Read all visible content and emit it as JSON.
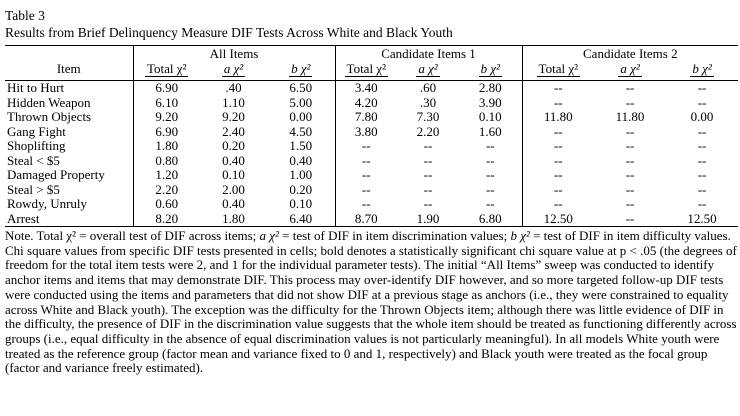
{
  "table": {
    "label": "Table 3",
    "title": "Results from Brief Delinquency Measure DIF Tests Across White and Black Youth",
    "item_header": "Item",
    "groups": [
      {
        "label": "All Items",
        "columns": [
          {
            "label": "Total χ²",
            "italic": false
          },
          {
            "label": "a χ²",
            "italic": true
          },
          {
            "label": "b χ²",
            "italic": true
          }
        ]
      },
      {
        "label": "Candidate Items 1",
        "columns": [
          {
            "label": "Total χ²",
            "italic": false
          },
          {
            "label": "a χ²",
            "italic": true
          },
          {
            "label": "b χ²",
            "italic": true
          }
        ]
      },
      {
        "label": "Candidate Items 2",
        "columns": [
          {
            "label": "Total χ²",
            "italic": false
          },
          {
            "label": "a χ²",
            "italic": true
          },
          {
            "label": "b χ²",
            "italic": true
          }
        ]
      }
    ],
    "rows": [
      {
        "item": "Hit to Hurt",
        "cells": [
          {
            "v": "6.90",
            "bold": true
          },
          {
            "v": ".40",
            "bold": false
          },
          {
            "v": "6.50",
            "bold": true
          },
          {
            "v": "3.40",
            "bold": false
          },
          {
            "v": ".60",
            "bold": false
          },
          {
            "v": "2.80",
            "bold": false
          },
          {
            "v": "--",
            "bold": false
          },
          {
            "v": "--",
            "bold": false
          },
          {
            "v": "--",
            "bold": false
          }
        ]
      },
      {
        "item": "Hidden Weapon",
        "cells": [
          {
            "v": "6.10",
            "bold": true
          },
          {
            "v": "1.10",
            "bold": false
          },
          {
            "v": "5.00",
            "bold": true
          },
          {
            "v": "4.20",
            "bold": false
          },
          {
            "v": ".30",
            "bold": false
          },
          {
            "v": "3.90",
            "bold": false
          },
          {
            "v": "--",
            "bold": false
          },
          {
            "v": "--",
            "bold": false
          },
          {
            "v": "--",
            "bold": false
          }
        ]
      },
      {
        "item": "Thrown Objects",
        "cells": [
          {
            "v": "9.20",
            "bold": true
          },
          {
            "v": "9.20",
            "bold": true
          },
          {
            "v": "0.00",
            "bold": false
          },
          {
            "v": "7.80",
            "bold": true
          },
          {
            "v": "7.30",
            "bold": true
          },
          {
            "v": "0.10",
            "bold": false
          },
          {
            "v": "11.80",
            "bold": true
          },
          {
            "v": "11.80",
            "bold": true
          },
          {
            "v": "0.00",
            "bold": false
          }
        ]
      },
      {
        "item": "Gang Fight",
        "cells": [
          {
            "v": "6.90",
            "bold": true
          },
          {
            "v": "2.40",
            "bold": false
          },
          {
            "v": "4.50",
            "bold": true
          },
          {
            "v": "3.80",
            "bold": false
          },
          {
            "v": "2.20",
            "bold": false
          },
          {
            "v": "1.60",
            "bold": false
          },
          {
            "v": "--",
            "bold": false
          },
          {
            "v": "--",
            "bold": false
          },
          {
            "v": "--",
            "bold": false
          }
        ]
      },
      {
        "item": "Shoplifting",
        "cells": [
          {
            "v": "1.80",
            "bold": false
          },
          {
            "v": "0.20",
            "bold": false
          },
          {
            "v": "1.50",
            "bold": false
          },
          {
            "v": "--",
            "bold": false
          },
          {
            "v": "--",
            "bold": false
          },
          {
            "v": "--",
            "bold": false
          },
          {
            "v": "--",
            "bold": false
          },
          {
            "v": "--",
            "bold": false
          },
          {
            "v": "--",
            "bold": false
          }
        ]
      },
      {
        "item": "Steal < $5",
        "cells": [
          {
            "v": "0.80",
            "bold": false
          },
          {
            "v": "0.40",
            "bold": false
          },
          {
            "v": "0.40",
            "bold": false
          },
          {
            "v": "--",
            "bold": false
          },
          {
            "v": "--",
            "bold": false
          },
          {
            "v": "--",
            "bold": false
          },
          {
            "v": "--",
            "bold": false
          },
          {
            "v": "--",
            "bold": false
          },
          {
            "v": "--",
            "bold": false
          }
        ]
      },
      {
        "item": "Damaged Property",
        "cells": [
          {
            "v": "1.20",
            "bold": false
          },
          {
            "v": "0.10",
            "bold": false
          },
          {
            "v": "1.00",
            "bold": false
          },
          {
            "v": "--",
            "bold": false
          },
          {
            "v": "--",
            "bold": false
          },
          {
            "v": "--",
            "bold": false
          },
          {
            "v": "--",
            "bold": false
          },
          {
            "v": "--",
            "bold": false
          },
          {
            "v": "--",
            "bold": false
          }
        ]
      },
      {
        "item": "Steal > $5",
        "cells": [
          {
            "v": "2.20",
            "bold": false
          },
          {
            "v": "2.00",
            "bold": false
          },
          {
            "v": "0.20",
            "bold": false
          },
          {
            "v": "--",
            "bold": false
          },
          {
            "v": "--",
            "bold": false
          },
          {
            "v": "--",
            "bold": false
          },
          {
            "v": "--",
            "bold": false
          },
          {
            "v": "--",
            "bold": false
          },
          {
            "v": "--",
            "bold": false
          }
        ]
      },
      {
        "item": "Rowdy, Unruly",
        "cells": [
          {
            "v": "0.60",
            "bold": false
          },
          {
            "v": "0.40",
            "bold": false
          },
          {
            "v": "0.10",
            "bold": false
          },
          {
            "v": "--",
            "bold": false
          },
          {
            "v": "--",
            "bold": false
          },
          {
            "v": "--",
            "bold": false
          },
          {
            "v": "--",
            "bold": false
          },
          {
            "v": "--",
            "bold": false
          },
          {
            "v": "--",
            "bold": false
          }
        ]
      },
      {
        "item": "Arrest",
        "cells": [
          {
            "v": "8.20",
            "bold": true
          },
          {
            "v": "1.80",
            "bold": false
          },
          {
            "v": "6.40",
            "bold": true
          },
          {
            "v": "8.70",
            "bold": true
          },
          {
            "v": "1.90",
            "bold": false
          },
          {
            "v": "6.80",
            "bold": true
          },
          {
            "v": "12.50",
            "bold": true
          },
          {
            "v": "--",
            "bold": false
          },
          {
            "v": "12.50",
            "bold": true
          }
        ]
      }
    ]
  },
  "note": {
    "segments": [
      {
        "t": "Note. Total χ² = overall test of DIF across items; ",
        "i": false
      },
      {
        "t": "a χ²",
        "i": true
      },
      {
        "t": " = test of DIF in item discrimination values; ",
        "i": false
      },
      {
        "t": "b χ²",
        "i": true
      },
      {
        "t": " = test of DIF in item difficulty values. Chi square values from specific DIF tests presented in cells; bold denotes a statistically significant chi square value at p < .05 (the degrees of freedom for the total item tests were 2, and 1 for the individual parameter tests). The initial “All Items” sweep was conducted to identify anchor items and items that may demonstrate DIF. This process may over-identify DIF however, and so more targeted follow-up DIF tests were conducted using the items and parameters that did not show DIF at a previous stage as anchors (i.e., they were constrained to equality across White and Black youth). The exception was the difficulty for the Thrown Objects item; although there was little evidence of DIF in the difficulty, the presence of DIF in the discrimination value suggests that the whole item should be treated as functioning differently across groups (i.e., equal difficulty in the absence of equal discrimination values is not particularly meaningful). In all models White youth were treated as the reference group (factor mean and variance fixed to 0 and 1, respectively) and Black youth were treated as the focal group (factor and variance freely estimated).",
        "i": false
      }
    ]
  }
}
